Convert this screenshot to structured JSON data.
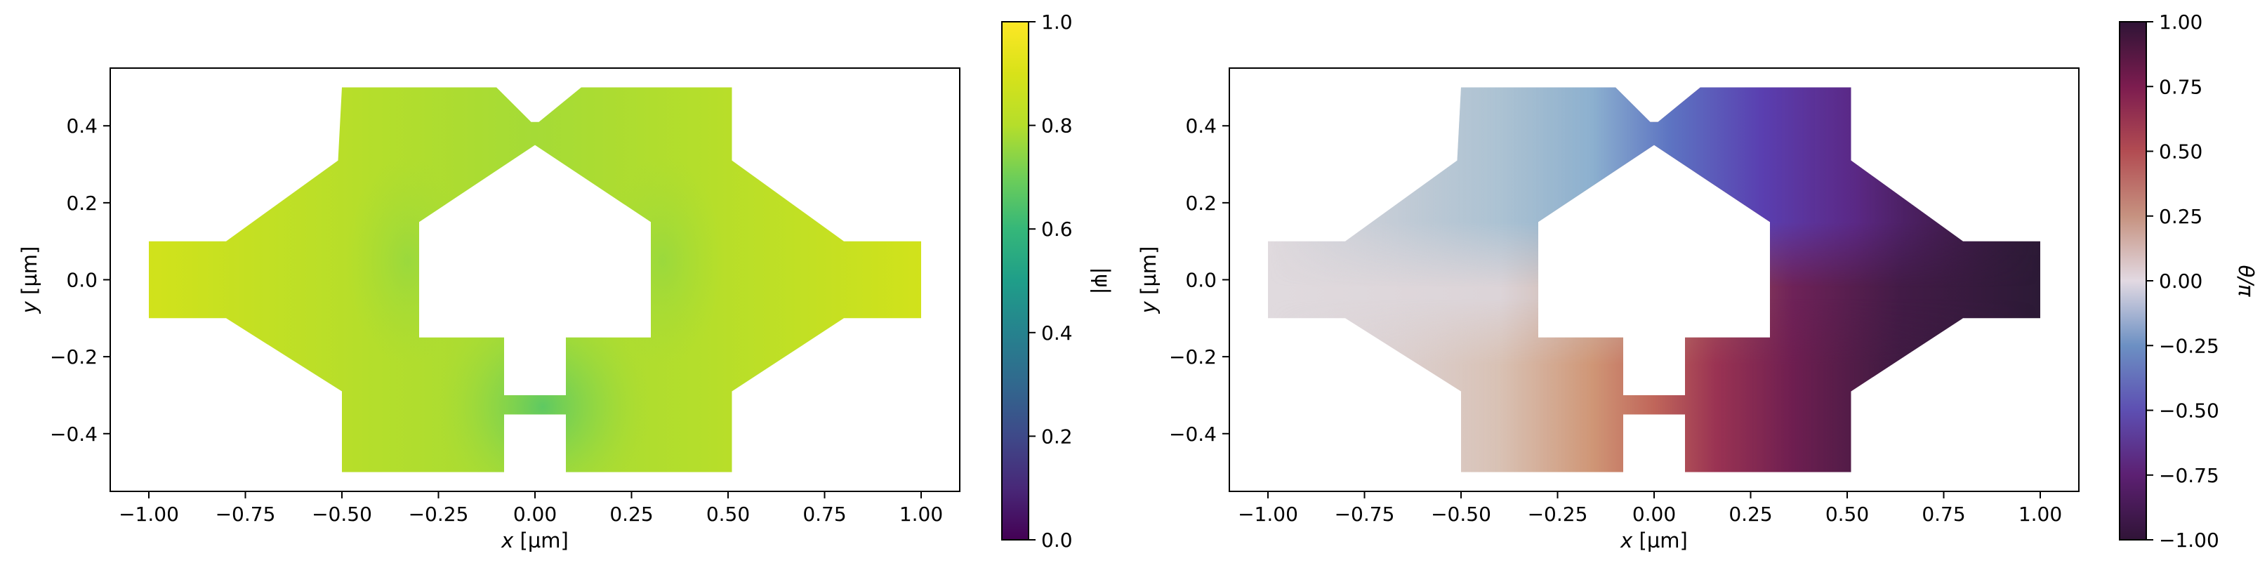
{
  "chart_data": [
    {
      "type": "heatmap",
      "quantity": "|ψ|",
      "xlabel_var": "x",
      "ylabel_var": "y",
      "unit": "[µm]",
      "xlim": [
        -1.1,
        1.1
      ],
      "ylim": [
        -0.55,
        0.55
      ],
      "xticks": [
        -1.0,
        -0.75,
        -0.5,
        -0.25,
        0.0,
        0.25,
        0.5,
        0.75,
        1.0
      ],
      "xtick_labels": [
        "−1.00",
        "−0.75",
        "−0.50",
        "−0.25",
        "0.00",
        "0.25",
        "0.50",
        "0.75",
        "1.00"
      ],
      "yticks": [
        -0.4,
        -0.2,
        0.0,
        0.2,
        0.4
      ],
      "ytick_labels": [
        "−0.4",
        "−0.2",
        "0.0",
        "0.2",
        "0.4"
      ],
      "colorbar": {
        "label": "|ψ|",
        "colormap": "viridis",
        "range": [
          0.0,
          1.0
        ],
        "ticks": [
          0.0,
          0.2,
          0.4,
          0.6,
          0.8,
          1.0
        ],
        "tick_labels": [
          "0.0",
          "0.2",
          "0.4",
          "0.6",
          "0.8",
          "1.0"
        ]
      },
      "colors": {
        "low": "#6fcc55",
        "mid": "#a8d936",
        "high": "#d1e21b"
      }
    },
    {
      "type": "heatmap",
      "quantity": "θ/π",
      "xlabel_var": "x",
      "ylabel_var": "y",
      "unit": "[µm]",
      "xlim": [
        -1.1,
        1.1
      ],
      "ylim": [
        -0.55,
        0.55
      ],
      "xticks": [
        -1.0,
        -0.75,
        -0.5,
        -0.25,
        0.0,
        0.25,
        0.5,
        0.75,
        1.0
      ],
      "xtick_labels": [
        "−1.00",
        "−0.75",
        "−0.50",
        "−0.25",
        "0.00",
        "0.25",
        "0.50",
        "0.75",
        "1.00"
      ],
      "yticks": [
        -0.4,
        -0.2,
        0.0,
        0.2,
        0.4
      ],
      "ytick_labels": [
        "−0.4",
        "−0.2",
        "0.0",
        "0.2",
        "0.4"
      ],
      "colorbar": {
        "label": "θ/π",
        "colormap": "twilight_shifted",
        "range": [
          -1.0,
          1.0
        ],
        "ticks": [
          -1.0,
          -0.75,
          -0.5,
          -0.25,
          0.0,
          0.25,
          0.5,
          0.75,
          1.0
        ],
        "tick_labels": [
          "−1.00",
          "−0.75",
          "−0.50",
          "−0.25",
          "0.00",
          "0.25",
          "0.50",
          "0.75",
          "1.00"
        ]
      }
    }
  ],
  "geometry": {
    "unit": "µm",
    "outline": [
      [
        -1.0,
        -0.1
      ],
      [
        -1.0,
        0.1
      ],
      [
        -0.8,
        0.1
      ],
      [
        -0.51,
        0.31
      ],
      [
        -0.5,
        0.5
      ],
      [
        -0.1,
        0.5
      ],
      [
        -0.01,
        0.41
      ],
      [
        0.01,
        0.41
      ],
      [
        0.12,
        0.5
      ],
      [
        0.51,
        0.5
      ],
      [
        0.51,
        0.31
      ],
      [
        0.8,
        0.1
      ],
      [
        1.0,
        0.1
      ],
      [
        1.0,
        -0.1
      ],
      [
        0.8,
        -0.1
      ],
      [
        0.51,
        -0.29
      ],
      [
        0.51,
        -0.5
      ],
      [
        0.08,
        -0.5
      ],
      [
        0.08,
        -0.35
      ],
      [
        -0.08,
        -0.35
      ],
      [
        -0.08,
        -0.5
      ],
      [
        -0.5,
        -0.5
      ],
      [
        -0.5,
        -0.29
      ],
      [
        -0.8,
        -0.1
      ]
    ],
    "hole": [
      [
        -0.3,
        -0.15
      ],
      [
        -0.3,
        0.15
      ],
      [
        0.0,
        0.35
      ],
      [
        0.3,
        0.15
      ],
      [
        0.3,
        -0.15
      ],
      [
        0.08,
        -0.15
      ],
      [
        0.08,
        -0.3
      ],
      [
        -0.08,
        -0.3
      ],
      [
        -0.08,
        -0.15
      ]
    ]
  }
}
